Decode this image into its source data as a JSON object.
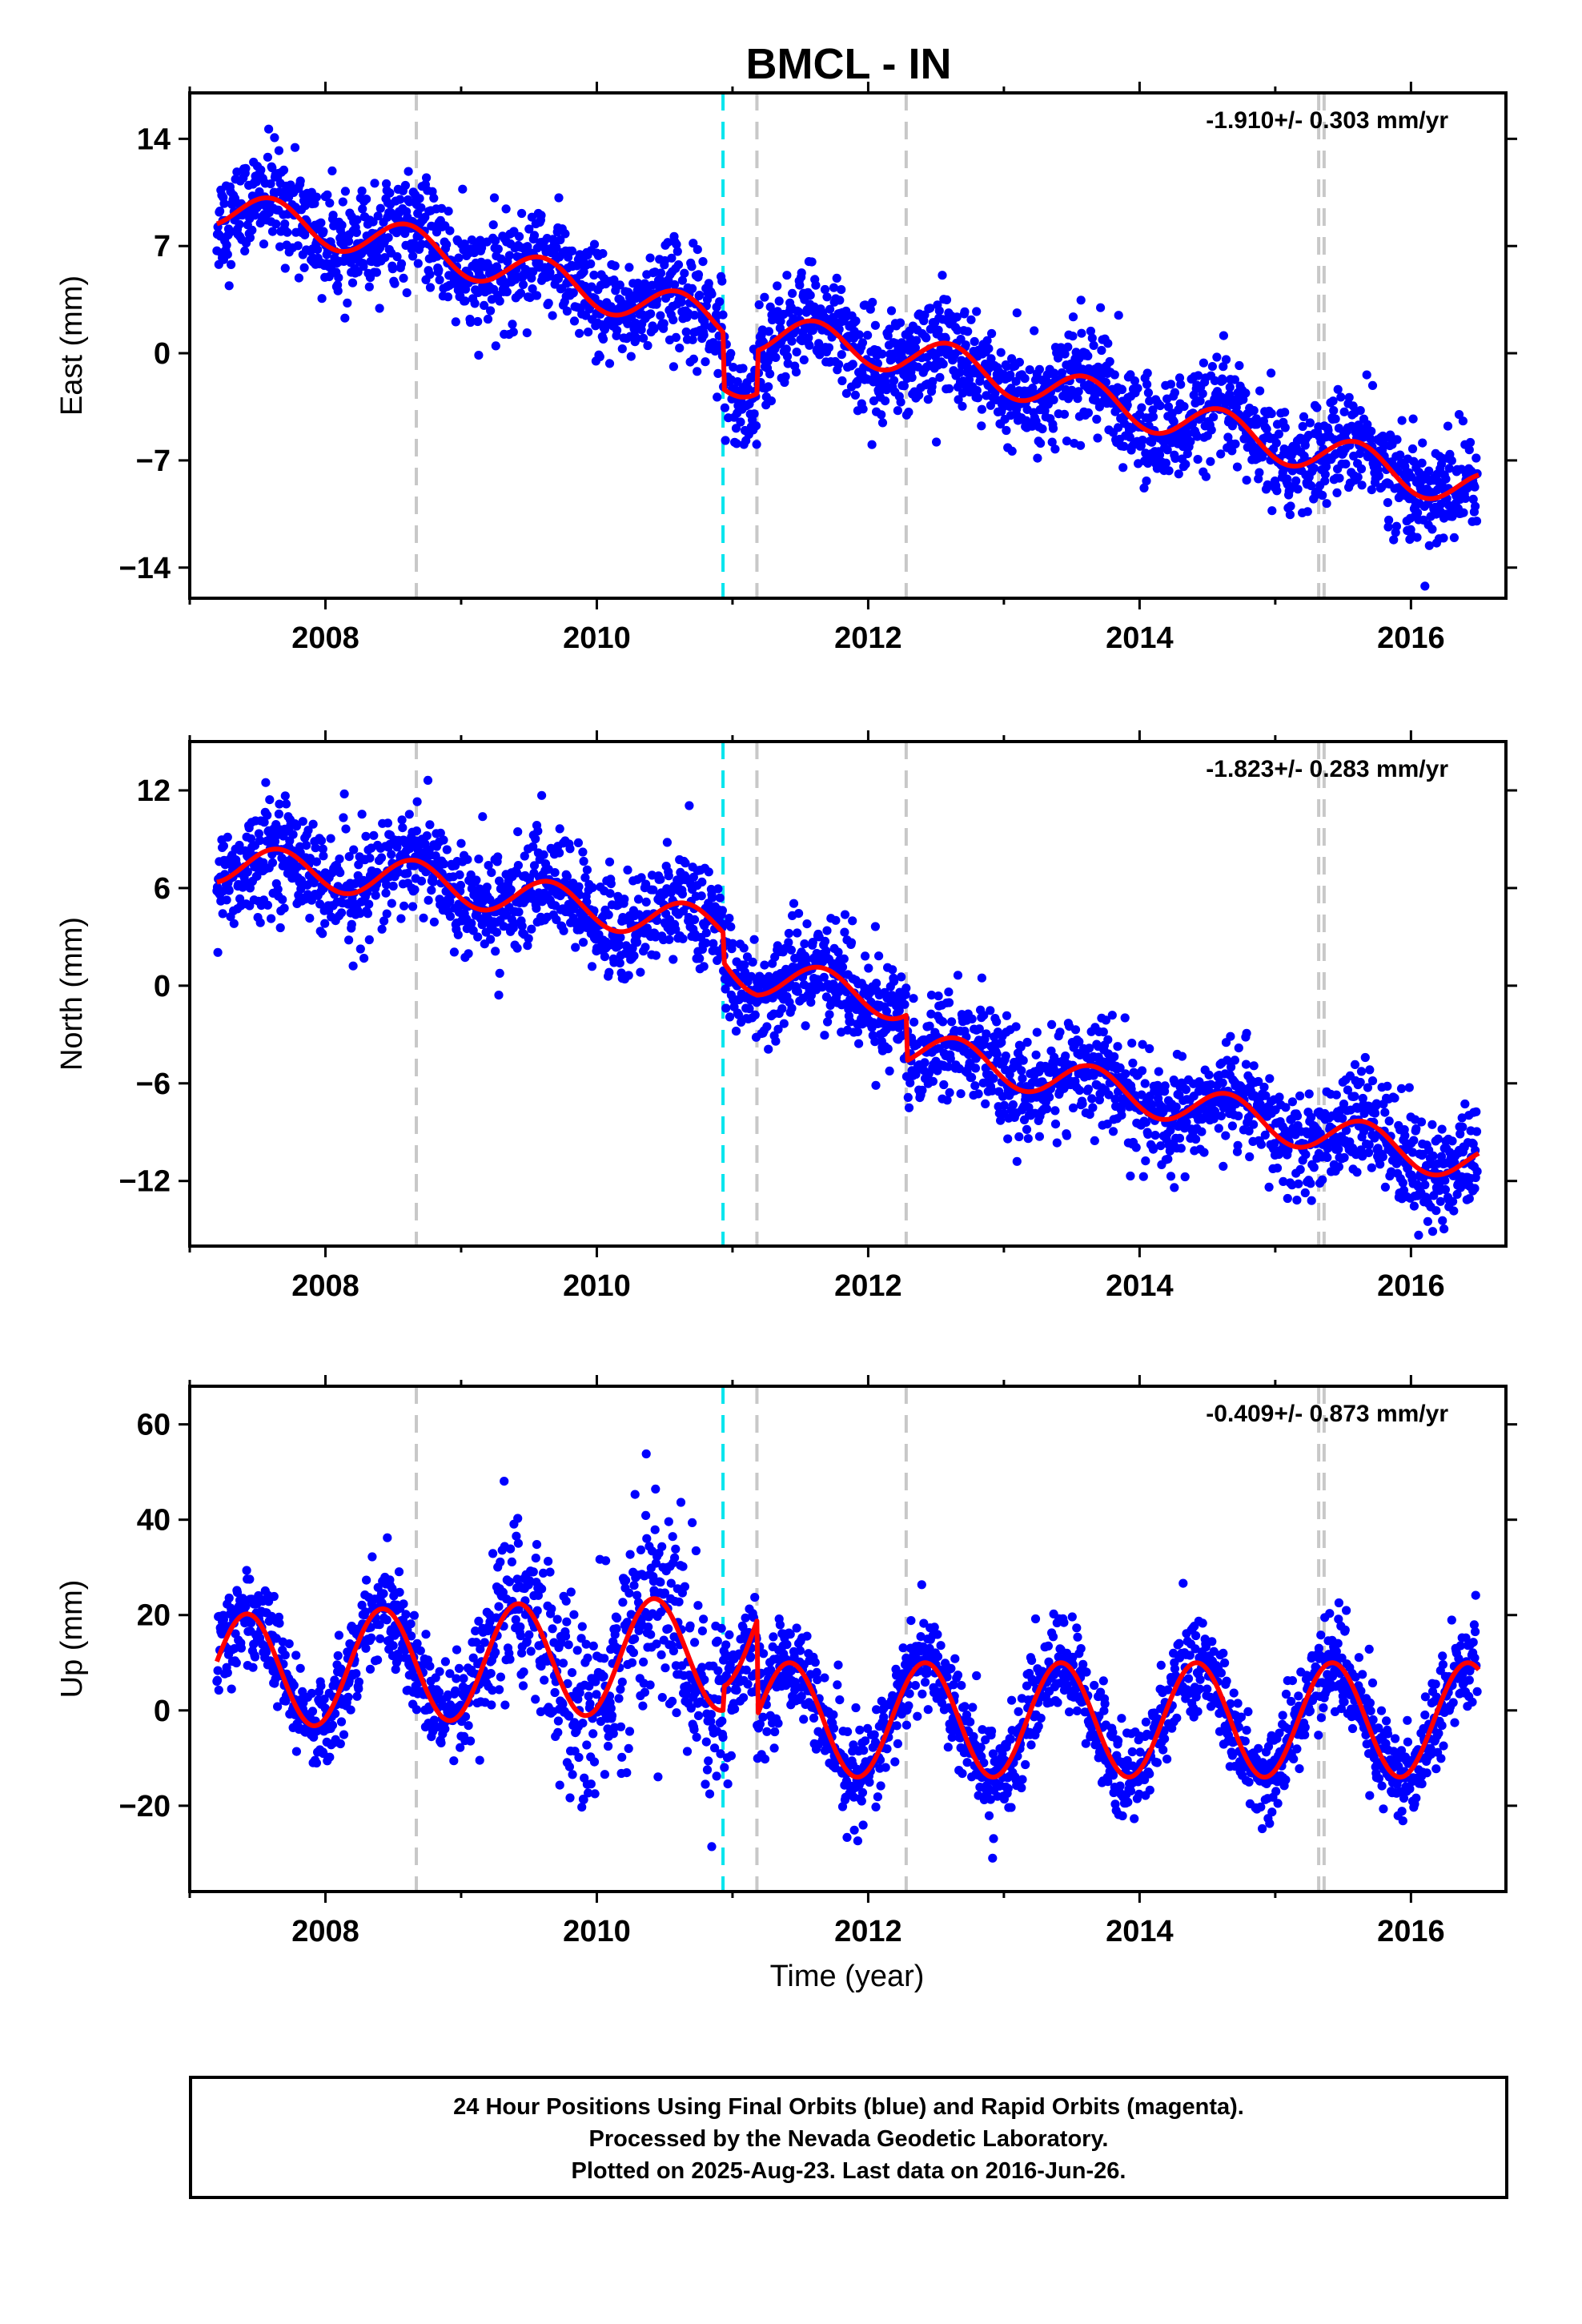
{
  "title": "BMCL - IN",
  "xlabel": "Time (year)",
  "colors": {
    "final_orbits": "#0000ff",
    "model": "#ff0000",
    "antenna_change": "#c8c8c8",
    "equipment_change": "#00e5ee"
  },
  "caption": [
    "24 Hour Positions Using Final Orbits (blue) and Rapid Orbits (magenta).",
    "Processed by the Nevada Geodetic Laboratory.",
    "Plotted on 2025-Aug-23. Last data on 2016-Jun-26."
  ],
  "chart_data": [
    {
      "type": "scatter",
      "ylabel": "East (mm)",
      "rate": "-1.910+/- 0.303 mm/yr",
      "xlim": [
        2007.0,
        2016.7
      ],
      "ylim": [
        -16,
        17
      ],
      "x_ticks": [
        2008,
        2010,
        2012,
        2014,
        2016
      ],
      "y_ticks": [
        14,
        7,
        0,
        -7,
        -14
      ],
      "y_tick_labels": [
        "14",
        "7",
        "0",
        "−7",
        "−14"
      ],
      "vertical_lines": [
        {
          "x": 2008.67,
          "color": "gray"
        },
        {
          "x": 2010.93,
          "color": "cyan"
        },
        {
          "x": 2011.18,
          "color": "gray"
        },
        {
          "x": 2012.28,
          "color": "gray"
        },
        {
          "x": 2015.32,
          "color": "gray"
        },
        {
          "x": 2015.36,
          "color": "gray"
        }
      ],
      "model": {
        "trend": [
          [
            2007.2,
            9.5
          ],
          [
            2008.67,
            7.0
          ],
          [
            2010.93,
            2.0
          ],
          [
            2010.93,
            -1.7
          ],
          [
            2011.18,
            -1.5
          ],
          [
            2011.18,
            1.3
          ],
          [
            2012.28,
            0.0
          ],
          [
            2015.32,
            -6.5
          ],
          [
            2016.5,
            -9.0
          ]
        ],
        "annual_amp": 1.3,
        "annual_phase": 0.35,
        "spread": 1.7
      }
    },
    {
      "type": "scatter",
      "ylabel": "North (mm)",
      "rate": "-1.823+/- 0.283 mm/yr",
      "xlim": [
        2007.0,
        2016.7
      ],
      "ylim": [
        -16,
        15
      ],
      "x_ticks": [
        2008,
        2010,
        2012,
        2014,
        2016
      ],
      "y_ticks": [
        12,
        6,
        0,
        -6,
        -12
      ],
      "y_tick_labels": [
        "12",
        "6",
        "0",
        "−6",
        "−12"
      ],
      "vertical_lines": [
        {
          "x": 2008.67,
          "color": "gray"
        },
        {
          "x": 2010.93,
          "color": "cyan"
        },
        {
          "x": 2011.18,
          "color": "gray"
        },
        {
          "x": 2012.28,
          "color": "gray"
        },
        {
          "x": 2015.32,
          "color": "gray"
        },
        {
          "x": 2015.36,
          "color": "gray"
        }
      ],
      "model": {
        "trend": [
          [
            2007.2,
            7.5
          ],
          [
            2008.67,
            6.5
          ],
          [
            2010.93,
            3.5
          ],
          [
            2010.93,
            1.7
          ],
          [
            2011.18,
            0.6
          ],
          [
            2012.28,
            -1.0
          ],
          [
            2012.28,
            -3.8
          ],
          [
            2016.5,
            -11.0
          ]
        ],
        "annual_amp": 1.2,
        "annual_phase": 0.4,
        "spread": 1.6
      }
    },
    {
      "type": "scatter",
      "ylabel": "Up (mm)",
      "rate": "-0.409+/- 0.873 mm/yr",
      "xlim": [
        2007.0,
        2016.7
      ],
      "ylim": [
        -38,
        68
      ],
      "x_ticks": [
        2008,
        2010,
        2012,
        2014,
        2016
      ],
      "y_ticks": [
        60,
        40,
        20,
        0,
        -20
      ],
      "y_tick_labels": [
        "60",
        "40",
        "20",
        "0",
        "−20"
      ],
      "vertical_lines": [
        {
          "x": 2008.67,
          "color": "gray"
        },
        {
          "x": 2010.93,
          "color": "cyan"
        },
        {
          "x": 2011.18,
          "color": "gray"
        },
        {
          "x": 2012.28,
          "color": "gray"
        },
        {
          "x": 2015.32,
          "color": "gray"
        },
        {
          "x": 2015.36,
          "color": "gray"
        }
      ],
      "model": {
        "trend": [
          [
            2007.2,
            8.0
          ],
          [
            2010.93,
            12.0
          ],
          [
            2010.93,
            17.0
          ],
          [
            2011.18,
            18.0
          ],
          [
            2011.18,
            -2.0
          ],
          [
            2016.5,
            -2.0
          ]
        ],
        "annual_amp": 12.0,
        "annual_phase": 0.17,
        "spread": 5.0
      }
    }
  ]
}
